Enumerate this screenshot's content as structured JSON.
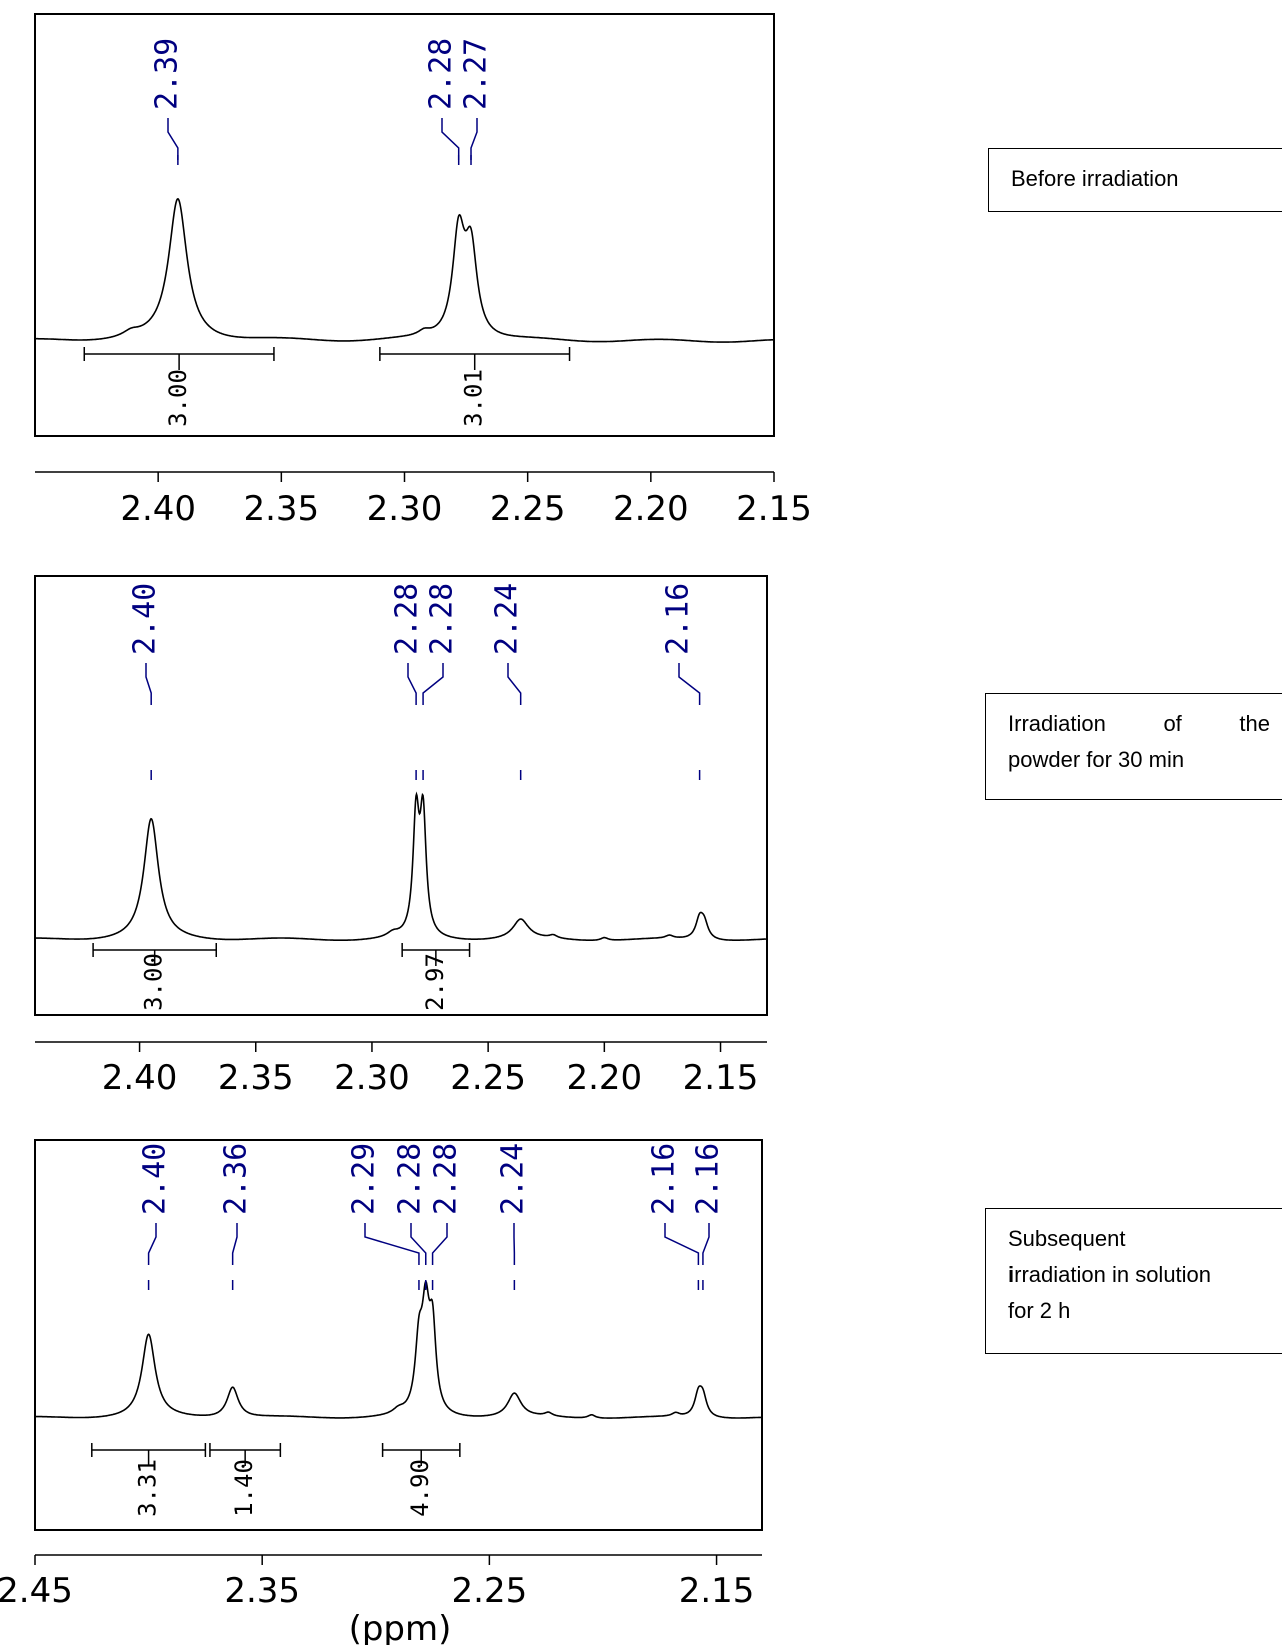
{
  "chart_data": [
    {
      "type": "line",
      "title": "",
      "condition": "Before irradiation",
      "xlabel": "",
      "x_ticks": [
        "2.40",
        "2.35",
        "2.30",
        "2.25",
        "2.20",
        "2.15"
      ],
      "xlim": [
        2.45,
        2.15
      ],
      "peaks": [
        {
          "ppm": 2.392,
          "height": 0.85,
          "width": 0.0045
        },
        {
          "ppm": 2.278,
          "height": 0.62,
          "width": 0.003
        },
        {
          "ppm": 2.273,
          "height": 0.52,
          "width": 0.003
        },
        {
          "ppm": 2.411,
          "height": 0.03,
          "width": 0.004
        },
        {
          "ppm": 2.292,
          "height": 0.03,
          "width": 0.003
        }
      ],
      "peak_labels": [
        "2.39",
        "2.28",
        "2.27"
      ],
      "integrals": [
        {
          "from": 2.43,
          "to": 2.353,
          "value": "3.00"
        },
        {
          "from": 2.31,
          "to": 2.233,
          "value": "3.01"
        }
      ]
    },
    {
      "type": "line",
      "title": "",
      "condition": "Irradiation of the powder for 30 min",
      "xlabel": "",
      "x_ticks": [
        "2.40",
        "2.35",
        "2.30",
        "2.25",
        "2.20",
        "2.15"
      ],
      "xlim": [
        2.445,
        2.13
      ],
      "peaks": [
        {
          "ppm": 2.395,
          "height": 0.8,
          "width": 0.0038
        },
        {
          "ppm": 2.281,
          "height": 0.78,
          "width": 0.0016
        },
        {
          "ppm": 2.278,
          "height": 0.78,
          "width": 0.0016
        },
        {
          "ppm": 2.236,
          "height": 0.13,
          "width": 0.004
        },
        {
          "ppm": 2.159,
          "height": 0.13,
          "width": 0.002
        },
        {
          "ppm": 2.157,
          "height": 0.1,
          "width": 0.002
        },
        {
          "ppm": 2.291,
          "height": 0.03,
          "width": 0.003
        },
        {
          "ppm": 2.222,
          "height": 0.02,
          "width": 0.002
        },
        {
          "ppm": 2.2,
          "height": 0.02,
          "width": 0.002
        },
        {
          "ppm": 2.172,
          "height": 0.02,
          "width": 0.002
        }
      ],
      "peak_labels": [
        "2.40",
        "2.28",
        "2.28",
        "2.24",
        "2.16"
      ],
      "integrals": [
        {
          "from": 2.42,
          "to": 2.367,
          "value": "3.00"
        },
        {
          "from": 2.287,
          "to": 2.258,
          "value": "2.97"
        }
      ]
    },
    {
      "type": "line",
      "title": "",
      "condition": "Subsequent irradiation in solution for 2 h",
      "xlabel": "(ppm)",
      "x_ticks": [
        "2.45",
        "2.35",
        "2.25",
        "2.15"
      ],
      "xlim": [
        2.45,
        2.13
      ],
      "peaks": [
        {
          "ppm": 2.4,
          "height": 0.7,
          "width": 0.0035
        },
        {
          "ppm": 2.363,
          "height": 0.26,
          "width": 0.003
        },
        {
          "ppm": 2.281,
          "height": 0.55,
          "width": 0.002
        },
        {
          "ppm": 2.278,
          "height": 0.8,
          "width": 0.002
        },
        {
          "ppm": 2.275,
          "height": 0.67,
          "width": 0.0018
        },
        {
          "ppm": 2.239,
          "height": 0.2,
          "width": 0.0035
        },
        {
          "ppm": 2.158,
          "height": 0.18,
          "width": 0.002
        },
        {
          "ppm": 2.156,
          "height": 0.16,
          "width": 0.002
        },
        {
          "ppm": 2.29,
          "height": 0.04,
          "width": 0.003
        },
        {
          "ppm": 2.224,
          "height": 0.03,
          "width": 0.002
        },
        {
          "ppm": 2.205,
          "height": 0.03,
          "width": 0.002
        },
        {
          "ppm": 2.168,
          "height": 0.03,
          "width": 0.002
        }
      ],
      "peak_labels": [
        "2.40",
        "2.36",
        "2.29",
        "2.28",
        "2.28",
        "2.24",
        "2.16",
        "2.16"
      ],
      "integrals": [
        {
          "from": 2.425,
          "to": 2.375,
          "value": "3.31"
        },
        {
          "from": 2.373,
          "to": 2.342,
          "value": "1.40"
        },
        {
          "from": 2.297,
          "to": 2.263,
          "value": "4.90"
        }
      ]
    }
  ]
}
